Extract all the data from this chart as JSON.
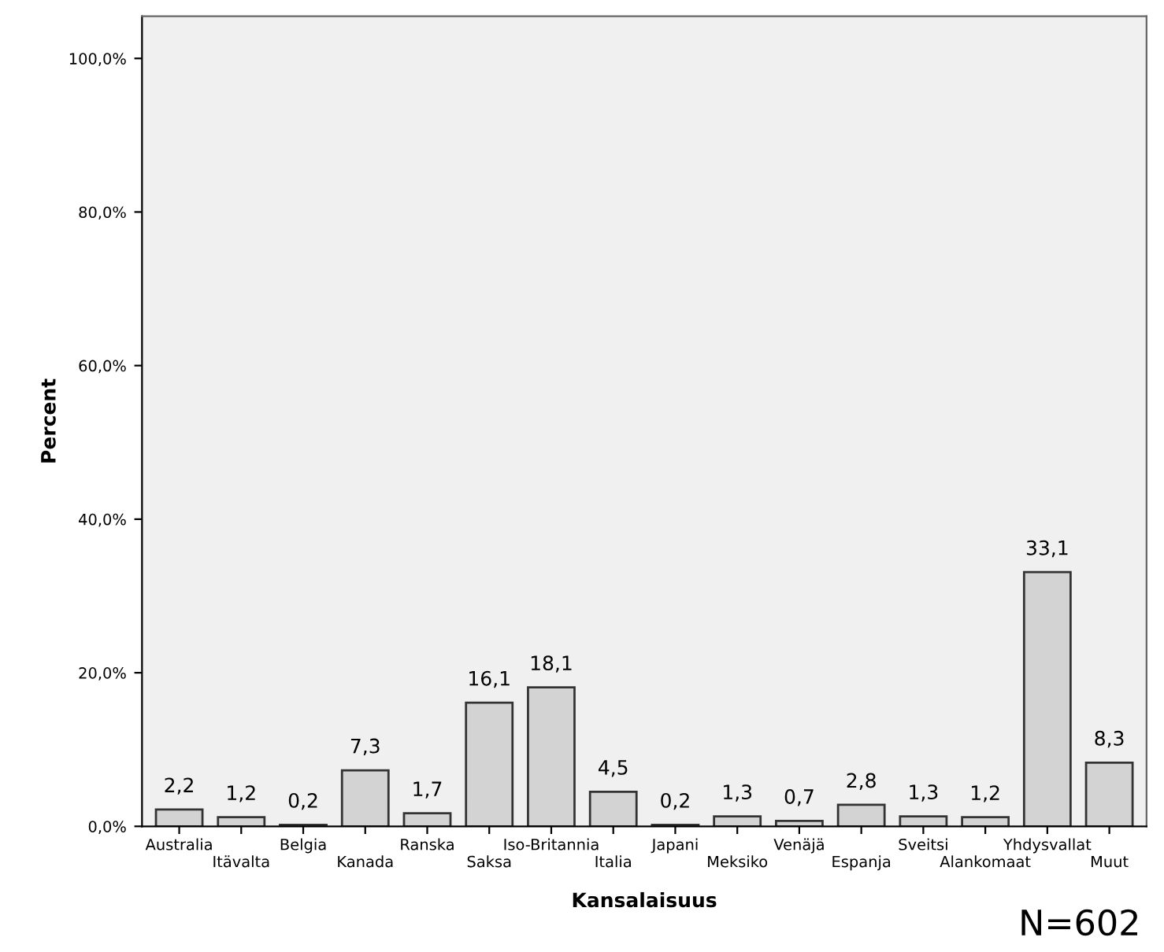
{
  "chart_data": {
    "type": "bar",
    "xlabel": "Kansalaisuus",
    "ylabel": "Percent",
    "categories": [
      "Australia",
      "Itävalta",
      "Belgia",
      "Kanada",
      "Ranska",
      "Saksa",
      "Iso-Britannia",
      "Italia",
      "Japani",
      "Meksiko",
      "Venäjä",
      "Espanja",
      "Sveitsi",
      "Alankomaat",
      "Yhdysvallat",
      "Muut"
    ],
    "values": [
      2.2,
      1.2,
      0.2,
      7.3,
      1.7,
      16.1,
      18.1,
      4.5,
      0.2,
      1.3,
      0.7,
      2.8,
      1.3,
      1.2,
      33.1,
      8.3
    ],
    "value_labels": [
      "2,2",
      "1,2",
      "0,2",
      "7,3",
      "1,7",
      "16,1",
      "18,1",
      "4,5",
      "0,2",
      "1,3",
      "0,7",
      "2,8",
      "1,3",
      "1,2",
      "33,1",
      "8,3"
    ],
    "color": "#d3d3d3",
    "ylim": [
      0,
      105.5
    ],
    "yticks": [
      {
        "value": 0,
        "label": "0,0%"
      },
      {
        "value": 20,
        "label": "20,0%"
      },
      {
        "value": 40,
        "label": "40,0%"
      },
      {
        "value": 60,
        "label": "60,0%"
      },
      {
        "value": 80,
        "label": "80,0%"
      },
      {
        "value": 100,
        "label": "100,0%"
      }
    ],
    "grid": false,
    "legend": false,
    "annotations": [
      "N=602"
    ]
  }
}
